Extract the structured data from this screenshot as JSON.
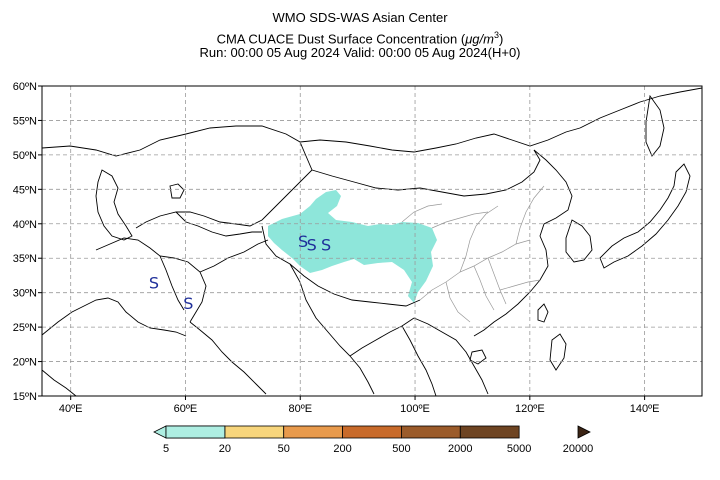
{
  "header": {
    "line1": "WMO SDS-WAS Asian Center",
    "line2_prefix": "CMA CUACE Dust Surface Concentration (",
    "line2_unit": "μg/m",
    "line2_sup": "3",
    "line2_suffix": ")",
    "line3": "Run: 00:00 05 Aug 2024    Valid: 00:00 05 Aug 2024(H+0)"
  },
  "map": {
    "lon_range": [
      35,
      150
    ],
    "lat_range": [
      15,
      60
    ],
    "lat_ticks": [
      {
        "value": 60,
        "label": "60ºN"
      },
      {
        "value": 55,
        "label": "55ºN"
      },
      {
        "value": 50,
        "label": "50ºN"
      },
      {
        "value": 45,
        "label": "45ºN"
      },
      {
        "value": 40,
        "label": "40ºN"
      },
      {
        "value": 35,
        "label": "35ºN"
      },
      {
        "value": 30,
        "label": "30ºN"
      },
      {
        "value": 25,
        "label": "25ºN"
      },
      {
        "value": 20,
        "label": "20ºN"
      },
      {
        "value": 15,
        "label": "15ºN"
      }
    ],
    "lon_ticks": [
      {
        "value": 40,
        "label": "40ºE"
      },
      {
        "value": 60,
        "label": "60ºE"
      },
      {
        "value": 80,
        "label": "80ºE"
      },
      {
        "value": 100,
        "label": "100ºE"
      },
      {
        "value": 120,
        "label": "120ºE"
      },
      {
        "value": 140,
        "label": "140ºE"
      }
    ],
    "grid": true,
    "dust_color": "#8ee6da",
    "storm_markers": [
      {
        "symbol": "S",
        "lon": 54.5,
        "lat": 31.5
      },
      {
        "symbol": "S",
        "lon": 60.5,
        "lat": 28.5
      },
      {
        "symbol": "S",
        "lon": 80.5,
        "lat": 37.5
      },
      {
        "symbol": "S",
        "lon": 82.0,
        "lat": 37.0
      },
      {
        "symbol": "S",
        "lon": 84.5,
        "lat": 37.0
      }
    ]
  },
  "colorbar": {
    "colors": [
      "#aeeee2",
      "#54dcb5",
      "#f7d57c",
      "#e89a4c",
      "#c86a2a",
      "#9b5b2a",
      "#6e4422",
      "#3b2414"
    ],
    "labels": [
      "5",
      "20",
      "50",
      "200",
      "500",
      "2000",
      "5000",
      "20000"
    ]
  }
}
